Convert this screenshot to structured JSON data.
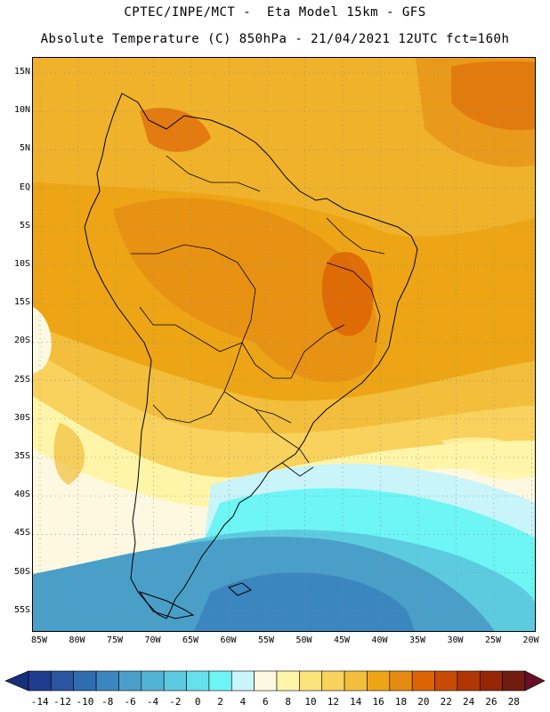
{
  "header": {
    "title_line1": "CPTEC/INPE/MCT -  Eta Model 15km - GFS",
    "title_line2": "Absolute Temperature (C) 850hPa - 21/04/2021 12UTC fct=160h"
  },
  "axes": {
    "lat_labels": [
      "15N",
      "10N",
      "5N",
      "EQ",
      "5S",
      "10S",
      "15S",
      "20S",
      "25S",
      "30S",
      "35S",
      "40S",
      "45S",
      "50S",
      "55S"
    ],
    "lon_labels": [
      "85W",
      "80W",
      "75W",
      "70W",
      "65W",
      "60W",
      "55W",
      "50W",
      "45W",
      "40W",
      "35W",
      "30W",
      "25W",
      "20W"
    ]
  },
  "colorbar": {
    "labels": [
      "-14",
      "-12",
      "-10",
      "-8",
      "-6",
      "-4",
      "-2",
      "0",
      "2",
      "4",
      "6",
      "8",
      "10",
      "12",
      "14",
      "16",
      "18",
      "20",
      "22",
      "24",
      "26",
      "28"
    ],
    "colors": [
      "#1f3d8f",
      "#2a55a0",
      "#2f6db0",
      "#3c86bf",
      "#4a9fc9",
      "#52b4d4",
      "#5ccbe0",
      "#66e0ea",
      "#6ef5f5",
      "#c8f4fa",
      "#fff8e0",
      "#fff5a8",
      "#fbe37c",
      "#f8d25c",
      "#f2be3c",
      "#eda515",
      "#e68a12",
      "#dd6405",
      "#c84a04",
      "#b03604",
      "#952606",
      "#701c0e"
    ],
    "min_color": "#16307a",
    "max_color": "#6a0e2c"
  }
}
